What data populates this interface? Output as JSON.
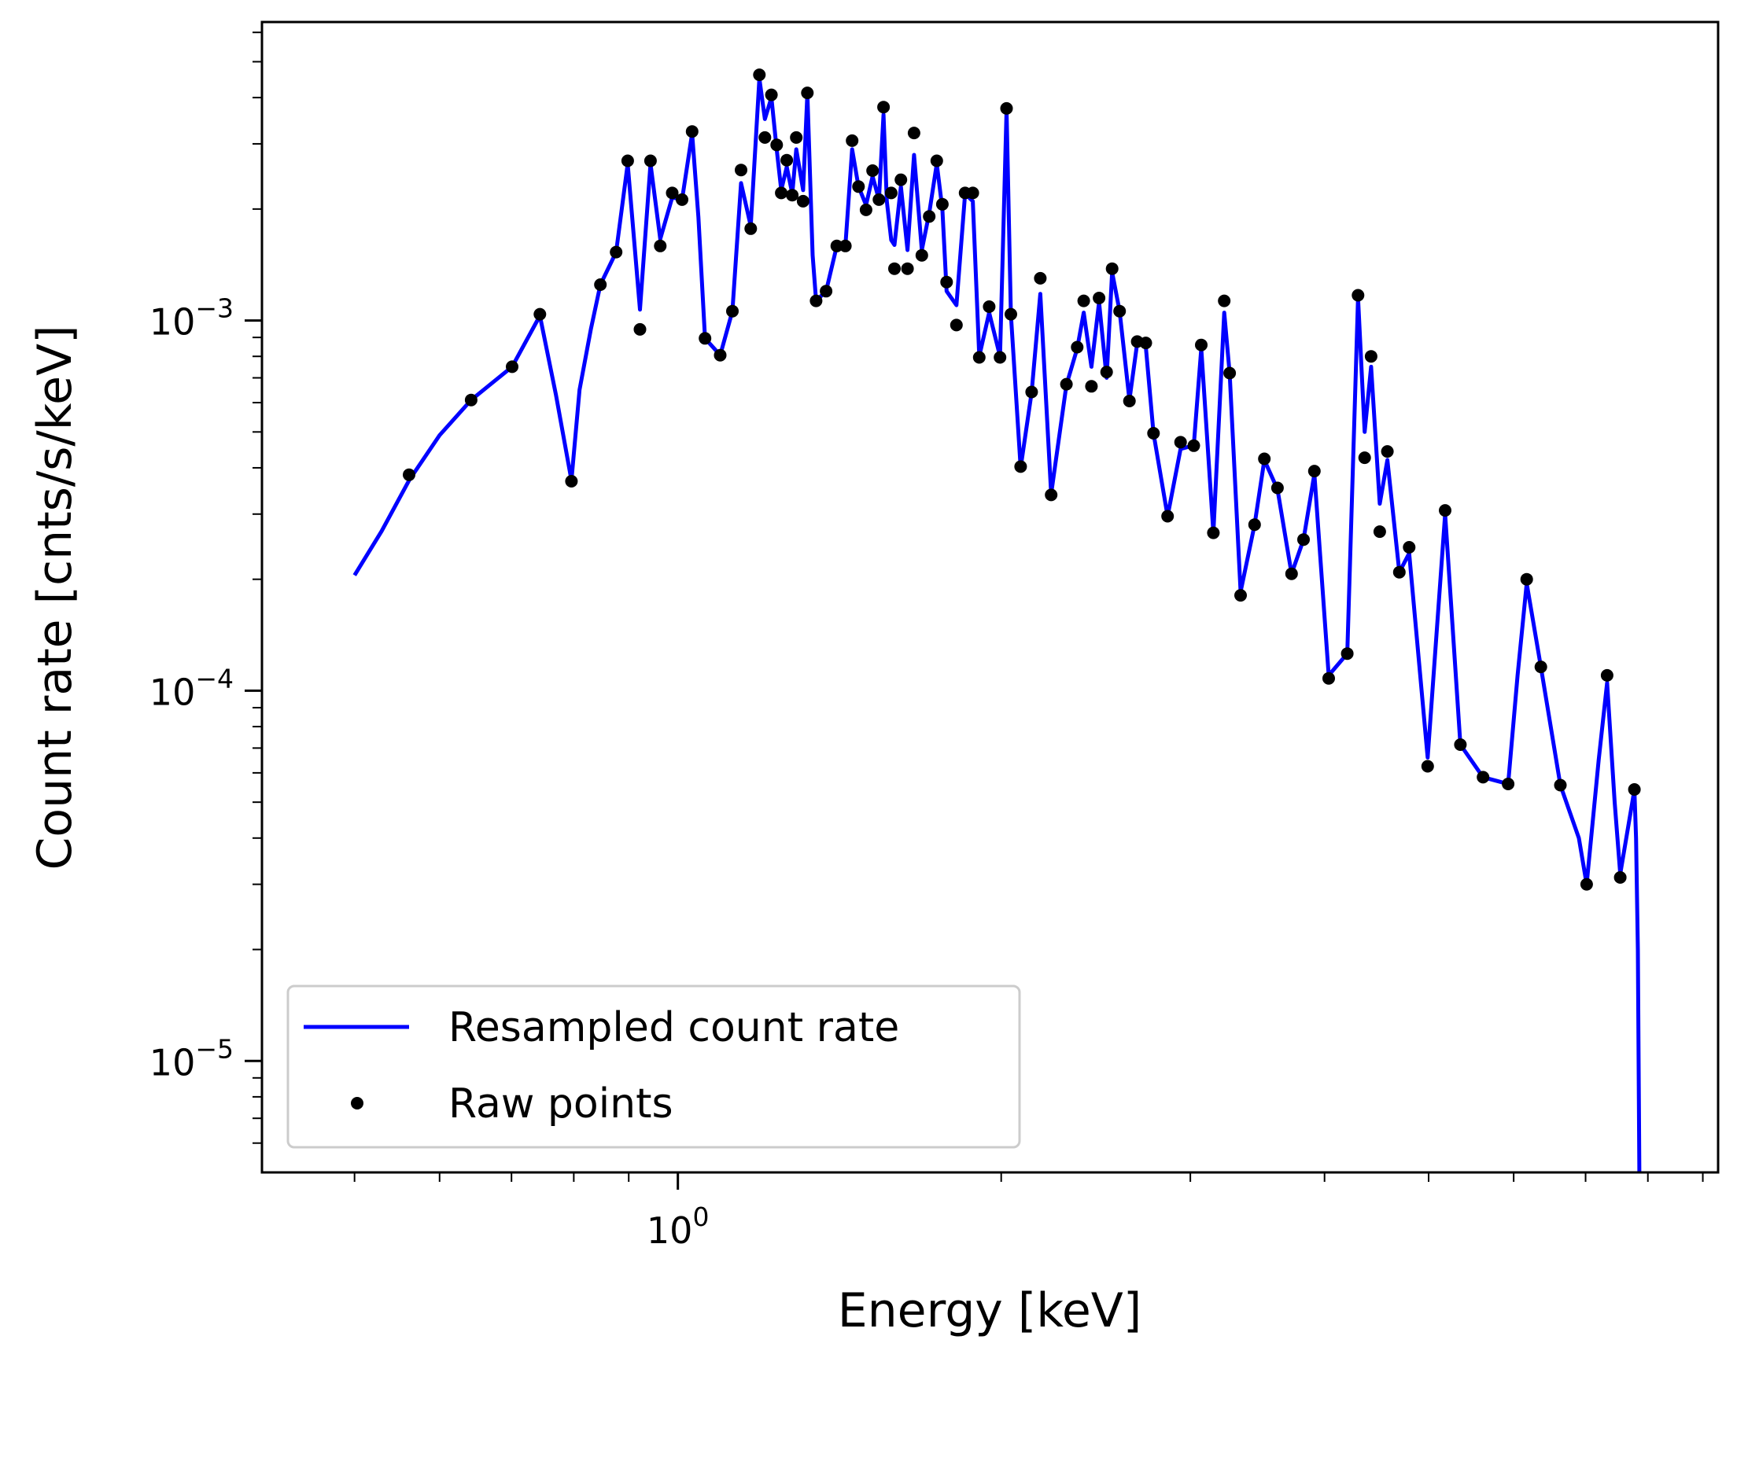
{
  "chart_data": {
    "type": "line",
    "title": "",
    "xlabel": "Energy [keV]",
    "ylabel": "Count rate [cnts/s/keV]",
    "xscale": "log",
    "yscale": "log",
    "xlim": [
      0.41,
      9.3
    ],
    "ylim": [
      5e-06,
      0.0064
    ],
    "grid": false,
    "x_ticks": [
      {
        "value": 1,
        "base": "10",
        "exp": "0"
      }
    ],
    "y_ticks": [
      {
        "value": 0.001,
        "base": "10",
        "exp": "−3"
      },
      {
        "value": 0.0001,
        "base": "10",
        "exp": "−4"
      },
      {
        "value": 1e-05,
        "base": "10",
        "exp": "−5"
      }
    ],
    "legend": {
      "placement": "lower-left",
      "entries": [
        {
          "label": "Resampled count rate",
          "marker": "line",
          "color": "#0000ff"
        },
        {
          "label": "Raw points",
          "marker": "dot",
          "color": "#000000"
        }
      ]
    },
    "series": [
      {
        "name": "Resampled count rate",
        "kind": "line",
        "color": "#0000ff",
        "x": [
          0.5,
          0.53,
          0.562,
          0.6,
          0.642,
          0.701,
          0.744,
          0.77,
          0.796,
          0.81,
          0.83,
          0.847,
          0.876,
          0.898,
          0.922,
          0.943,
          0.963,
          0.988,
          1.009,
          1.031,
          1.045,
          1.06,
          1.095,
          1.124,
          1.145,
          1.169,
          1.191,
          1.205,
          1.222,
          1.236,
          1.248,
          1.263,
          1.278,
          1.289,
          1.308,
          1.32,
          1.335,
          1.345,
          1.374,
          1.406,
          1.432,
          1.453,
          1.473,
          1.497,
          1.518,
          1.539,
          1.554,
          1.565,
          1.58,
          1.591,
          1.613,
          1.636,
          1.659,
          1.687,
          1.714,
          1.742,
          1.763,
          1.779,
          1.817,
          1.851,
          1.882,
          1.908,
          1.949,
          1.995,
          2.023,
          2.042,
          2.085,
          2.135,
          2.175,
          2.226,
          2.3,
          2.354,
          2.387,
          2.427,
          2.467,
          2.507,
          2.537,
          2.578,
          2.633,
          2.677,
          2.727,
          2.772,
          2.857,
          2.938,
          3.022,
          3.071,
          3.152,
          3.226,
          3.264,
          3.341,
          3.443,
          3.516,
          3.616,
          3.727,
          3.824,
          3.914,
          4.036,
          4.2,
          4.298,
          4.359,
          4.42,
          4.503,
          4.577,
          4.696,
          4.796,
          4.99,
          5.18,
          5.352,
          5.619,
          5.929,
          6.05,
          6.17,
          6.36,
          6.632,
          6.9,
          7.016,
          7.2,
          7.331,
          7.45,
          7.54,
          7.772,
          7.8,
          7.83,
          7.86
        ],
        "y": [
          0.000205,
          0.00027,
          0.00037,
          0.00049,
          0.00061,
          0.00075,
          0.00103,
          0.00063,
          0.00037,
          0.00065,
          0.00095,
          0.00125,
          0.00153,
          0.00265,
          0.00107,
          0.00265,
          0.00166,
          0.00215,
          0.00212,
          0.0032,
          0.0019,
          0.000895,
          0.000806,
          0.00106,
          0.00235,
          0.0018,
          0.0045,
          0.0035,
          0.004,
          0.0029,
          0.00225,
          0.0026,
          0.0022,
          0.0029,
          0.00225,
          0.0041,
          0.0015,
          0.00113,
          0.0012,
          0.00159,
          0.00159,
          0.0029,
          0.0023,
          0.00205,
          0.00245,
          0.00212,
          0.0036,
          0.0021,
          0.00165,
          0.0016,
          0.0023,
          0.00155,
          0.0028,
          0.00155,
          0.00195,
          0.00265,
          0.002,
          0.0012,
          0.0011,
          0.0022,
          0.0021,
          0.0008,
          0.00105,
          0.0008,
          0.0037,
          0.00104,
          0.0004,
          0.00064,
          0.00118,
          0.00034,
          0.00067,
          0.00084,
          0.00105,
          0.00075,
          0.00112,
          0.0007,
          0.00135,
          0.00106,
          0.00061,
          0.00087,
          0.00085,
          0.000496,
          0.000296,
          0.00045,
          0.00046,
          0.00084,
          0.000267,
          0.00105,
          0.00072,
          0.000185,
          0.000281,
          0.00042,
          0.00035,
          0.000207,
          0.000256,
          0.000385,
          0.00011,
          0.000126,
          0.00115,
          0.0005,
          0.00075,
          0.00032,
          0.00042,
          0.000209,
          0.000235,
          6.6e-05,
          0.0003,
          7.15e-05,
          5.84e-05,
          5.6e-05,
          0.00011,
          0.000195,
          0.000116,
          5.56e-05,
          4e-05,
          3e-05,
          6.5e-05,
          0.000105,
          5e-05,
          3.2e-05,
          5.4e-05,
          4e-05,
          2e-05,
          4e-06
        ]
      },
      {
        "name": "Raw points",
        "kind": "scatter",
        "color": "#000000",
        "x": [
          0.562,
          0.642,
          0.701,
          0.744,
          0.796,
          0.847,
          0.876,
          0.898,
          0.922,
          0.943,
          0.963,
          0.988,
          1.009,
          1.031,
          1.06,
          1.095,
          1.124,
          1.145,
          1.169,
          1.191,
          1.205,
          1.222,
          1.236,
          1.248,
          1.263,
          1.278,
          1.289,
          1.308,
          1.32,
          1.345,
          1.374,
          1.406,
          1.432,
          1.453,
          1.473,
          1.497,
          1.518,
          1.539,
          1.554,
          1.58,
          1.591,
          1.613,
          1.636,
          1.659,
          1.687,
          1.714,
          1.742,
          1.763,
          1.779,
          1.817,
          1.851,
          1.882,
          1.908,
          1.949,
          1.995,
          2.023,
          2.042,
          2.085,
          2.135,
          2.175,
          2.226,
          2.3,
          2.354,
          2.387,
          2.427,
          2.467,
          2.507,
          2.537,
          2.578,
          2.633,
          2.677,
          2.727,
          2.772,
          2.857,
          2.938,
          3.022,
          3.071,
          3.152,
          3.226,
          3.264,
          3.341,
          3.443,
          3.516,
          3.616,
          3.727,
          3.824,
          3.914,
          4.036,
          4.2,
          4.298,
          4.359,
          4.42,
          4.503,
          4.577,
          4.696,
          4.796,
          4.99,
          5.18,
          5.352,
          5.619,
          5.929,
          6.17,
          6.36,
          6.632,
          7.016,
          7.331,
          7.54,
          7.772
        ],
        "y": [
          0.000383,
          0.00061,
          0.00075,
          0.00104,
          0.000368,
          0.00125,
          0.00153,
          0.0027,
          0.000946,
          0.0027,
          0.00159,
          0.00221,
          0.00212,
          0.00324,
          0.000895,
          0.000806,
          0.00106,
          0.00255,
          0.00177,
          0.00461,
          0.00312,
          0.00407,
          0.00298,
          0.00221,
          0.00271,
          0.00218,
          0.00312,
          0.0021,
          0.00412,
          0.00113,
          0.0012,
          0.00159,
          0.00159,
          0.00306,
          0.0023,
          0.00199,
          0.00254,
          0.00212,
          0.00377,
          0.00221,
          0.00138,
          0.0024,
          0.00138,
          0.00321,
          0.0015,
          0.00191,
          0.0027,
          0.00206,
          0.00127,
          0.000972,
          0.00221,
          0.00221,
          0.000795,
          0.00109,
          0.000795,
          0.00374,
          0.00104,
          0.000403,
          0.000641,
          0.0013,
          0.000338,
          0.000673,
          0.000847,
          0.00113,
          0.000664,
          0.00115,
          0.000726,
          0.00138,
          0.00106,
          0.000606,
          0.000877,
          0.00087,
          0.000496,
          0.000296,
          0.000469,
          0.000459,
          0.000859,
          0.000267,
          0.00113,
          0.000721,
          0.000181,
          0.000281,
          0.000423,
          0.000353,
          0.000207,
          0.000256,
          0.000392,
          0.000108,
          0.000126,
          0.00117,
          0.000426,
          0.0008,
          0.000269,
          0.000443,
          0.000209,
          0.000244,
          6.25e-05,
          0.000307,
          7.15e-05,
          5.84e-05,
          5.6e-05,
          0.0002,
          0.000116,
          5.56e-05,
          3e-05,
          0.00011,
          3.13e-05,
          5.41e-05
        ]
      }
    ]
  }
}
